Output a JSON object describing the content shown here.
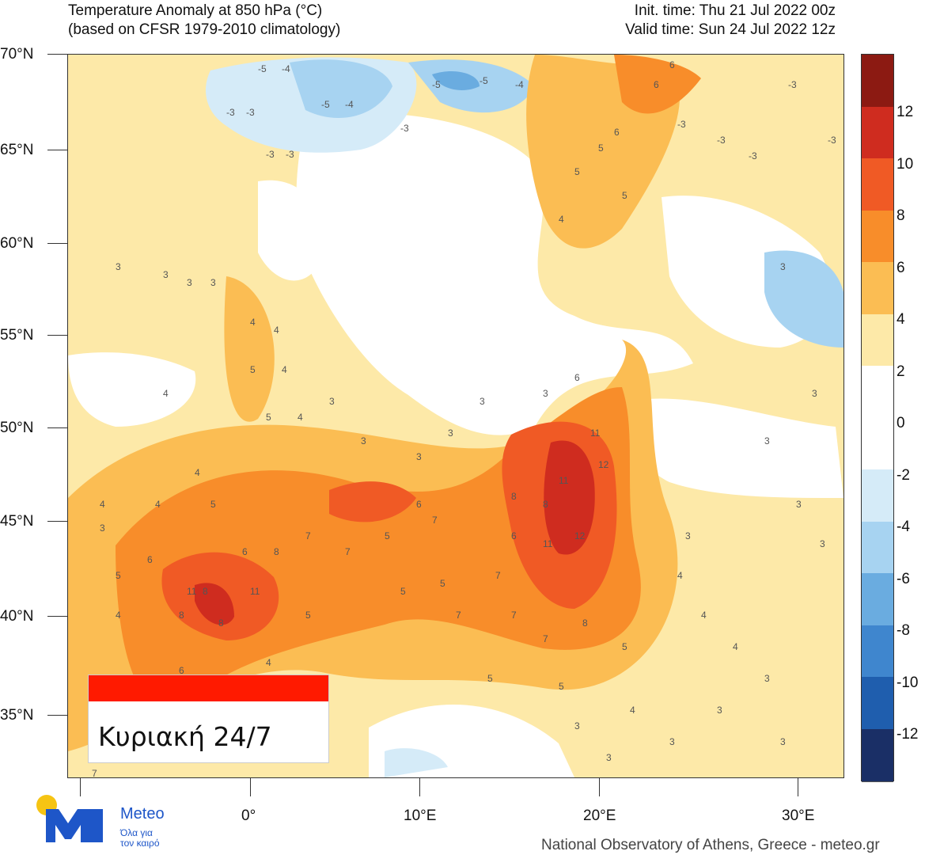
{
  "header": {
    "title_line1": "Temperature Anomaly at 850 hPa (°C)",
    "title_line2": "(based on CFSR 1979-2010 climatology)",
    "init_time": "Init. time: Thu 21 Jul 2022 00z",
    "valid_time": "Valid time: Sun 24 Jul 2022 12z"
  },
  "map": {
    "lat_labels": [
      "70°N",
      "65°N",
      "60°N",
      "55°N",
      "50°N",
      "45°N",
      "40°N",
      "35°N"
    ],
    "lon_labels": [
      "0°",
      "10°E",
      "20°E",
      "30°E"
    ],
    "anomaly_values_shown": [
      "-5",
      "-4",
      "-3",
      "3",
      "4",
      "5",
      "6",
      "7",
      "8",
      "10",
      "11",
      "12"
    ]
  },
  "colorbar": {
    "labels": [
      "12",
      "10",
      "8",
      "6",
      "4",
      "2",
      "0",
      "-2",
      "-4",
      "-6",
      "-8",
      "-10",
      "-12"
    ],
    "colors": [
      "#8c1a12",
      "#cf2c1f",
      "#f05a25",
      "#f88d2a",
      "#fbbd53",
      "#fde9a8",
      "#ffffff",
      "#ffffff",
      "#d5ebf8",
      "#a7d3f1",
      "#6aace0",
      "#3f86ce",
      "#1f5eae",
      "#1a2f66"
    ]
  },
  "overlay": {
    "label": "Κυριακή 24/7",
    "bar_color": "#ff1a00"
  },
  "branding": {
    "logo_name": "Meteo",
    "logo_tagline": "Όλα για τον καιρό",
    "logo_icon": "meteo-m-sun-logo",
    "credit": "National Observatory of Athens, Greece - meteo.gr"
  }
}
